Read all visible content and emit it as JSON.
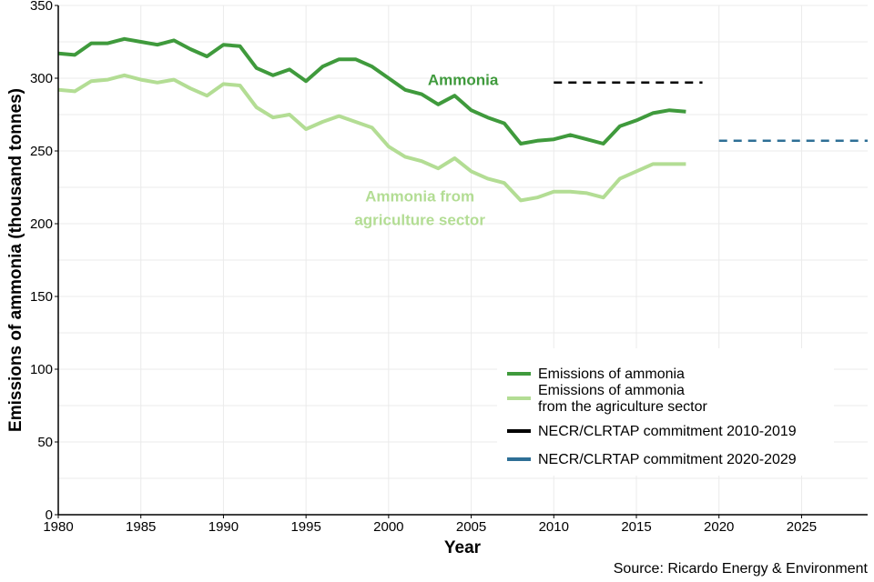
{
  "chart_data": {
    "type": "line",
    "title": "",
    "xlabel": "Year",
    "ylabel": "Emissions of ammonia (thousand tonnes)",
    "xlim": [
      1980,
      2029
    ],
    "ylim": [
      0,
      350
    ],
    "grid": true,
    "x_ticks": [
      1980,
      1985,
      1990,
      1995,
      2000,
      2005,
      2010,
      2015,
      2020,
      2025
    ],
    "y_ticks": [
      0,
      50,
      100,
      150,
      200,
      250,
      300,
      350
    ],
    "x": [
      1980,
      1981,
      1982,
      1983,
      1984,
      1985,
      1986,
      1987,
      1988,
      1989,
      1990,
      1991,
      1992,
      1993,
      1994,
      1995,
      1996,
      1997,
      1998,
      1999,
      2000,
      2001,
      2002,
      2003,
      2004,
      2005,
      2006,
      2007,
      2008,
      2009,
      2010,
      2011,
      2012,
      2013,
      2014,
      2015,
      2016,
      2017,
      2018
    ],
    "series": [
      {
        "name": "Emissions of ammonia",
        "color": "#3f9a3c",
        "style": "solid",
        "values": [
          317,
          316,
          324,
          324,
          327,
          325,
          323,
          326,
          320,
          315,
          323,
          322,
          307,
          302,
          306,
          298,
          308,
          313,
          313,
          308,
          300,
          292,
          289,
          282,
          288,
          278,
          273,
          269,
          255,
          257,
          258,
          261,
          258,
          255,
          267,
          271,
          276,
          278,
          277
        ]
      },
      {
        "name": "Emissions of ammonia from the agriculture sector",
        "color": "#b3dd94",
        "style": "solid",
        "values": [
          292,
          291,
          298,
          299,
          302,
          299,
          297,
          299,
          293,
          288,
          296,
          295,
          280,
          273,
          275,
          265,
          270,
          274,
          270,
          266,
          253,
          246,
          243,
          238,
          245,
          236,
          231,
          228,
          216,
          218,
          222,
          222,
          221,
          218,
          231,
          236,
          241,
          241,
          241
        ]
      }
    ],
    "reference_lines": [
      {
        "name": "NECR/CLRTAP commitment 2010-2019",
        "color": "#000000",
        "style": "dashed",
        "x": [
          2010,
          2019
        ],
        "y": 297
      },
      {
        "name": "NECR/CLRTAP commitment 2020-2029",
        "color": "#2e6f96",
        "style": "dashed",
        "x": [
          2020,
          2029
        ],
        "y": 257
      }
    ],
    "annotations": [
      {
        "text": "Ammonia",
        "color": "#3f9a3c",
        "x": 2005,
        "y": 299
      },
      {
        "text_lines": [
          "Ammonia from",
          "agriculture sector"
        ],
        "color": "#b3dd94",
        "x": 2002,
        "y": 216
      }
    ],
    "legend": {
      "placement": "bottom-right",
      "entries": [
        {
          "lines": [
            "Emissions of ammonia"
          ],
          "color": "#3f9a3c"
        },
        {
          "lines": [
            "Emissions of ammonia",
            "from the agriculture sector"
          ],
          "color": "#b3dd94"
        },
        {
          "lines": [
            "NECR/CLRTAP commitment 2010-2019"
          ],
          "color": "#000000"
        },
        {
          "lines": [
            "NECR/CLRTAP commitment 2020-2029"
          ],
          "color": "#2e6f96"
        }
      ]
    },
    "source": "Source: Ricardo Energy & Environment"
  }
}
